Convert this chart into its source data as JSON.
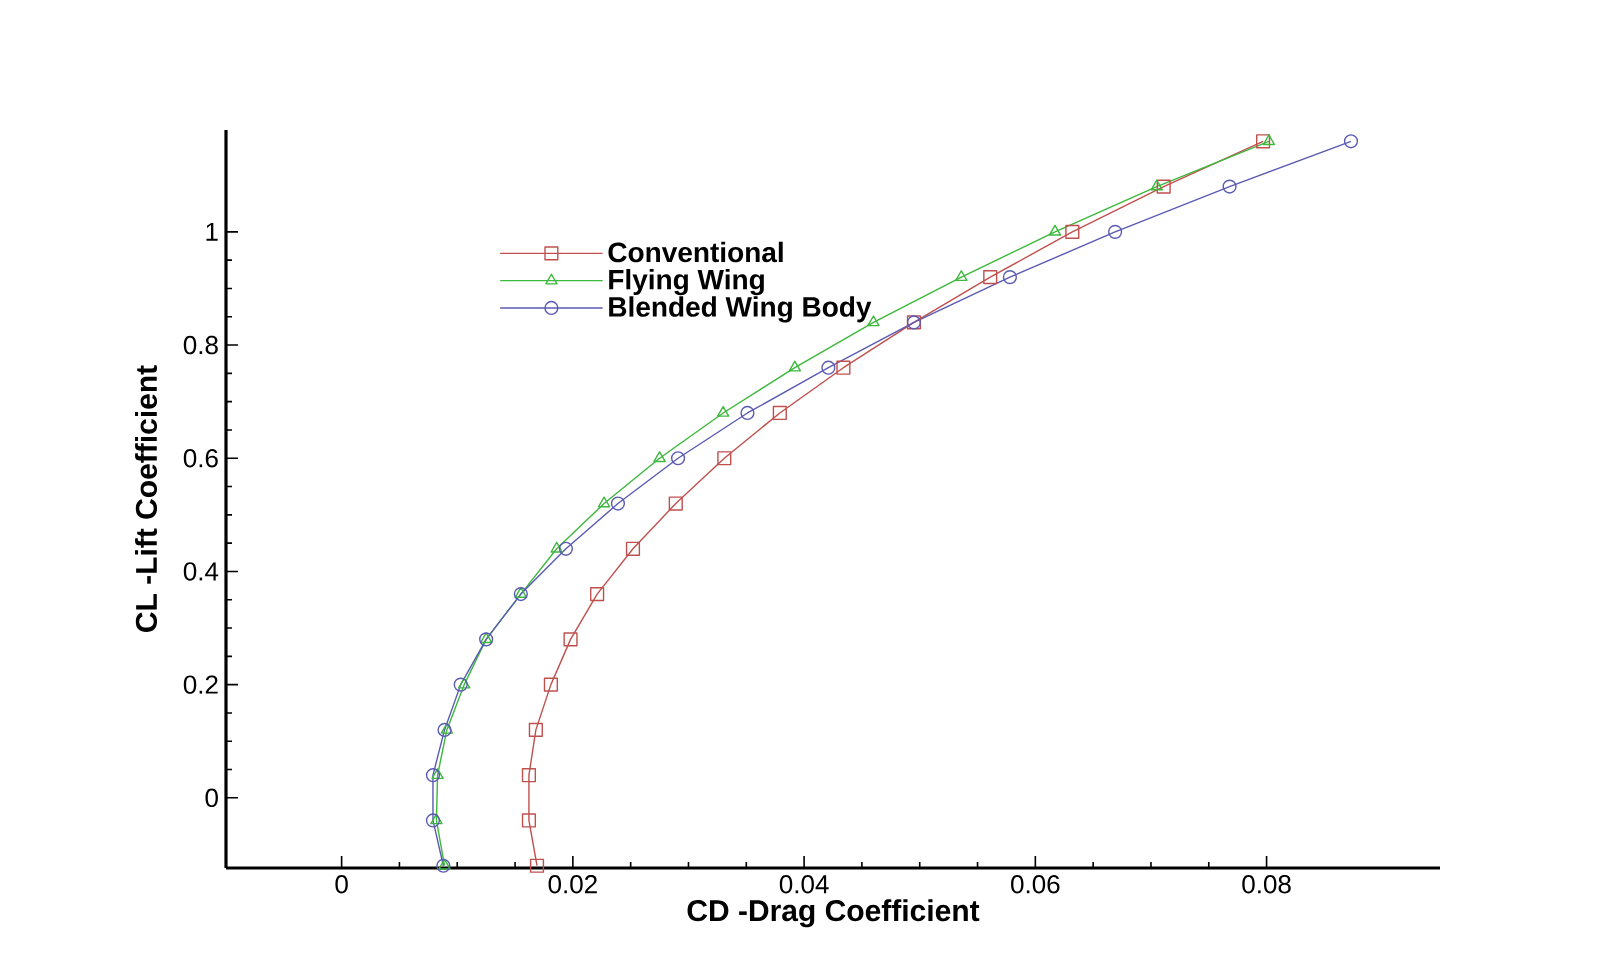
{
  "chart_data": {
    "type": "line",
    "xlabel": "CD -Drag Coefficient",
    "ylabel": "CL -Lift Coefficient",
    "xlim": [
      -0.01,
      0.095
    ],
    "ylim": [
      -0.124,
      1.18
    ],
    "xticks": [
      0,
      0.02,
      0.04,
      0.06,
      0.08
    ],
    "yticks": [
      0,
      0.2,
      0.4,
      0.6,
      0.8,
      1
    ],
    "grid": false,
    "legend": "top left",
    "line_style": "solid",
    "series": [
      {
        "name": "Conventional",
        "color": "#c0504d",
        "marker": "square",
        "x": [
          0.0169,
          0.0162,
          0.0162,
          0.0168,
          0.0181,
          0.0198,
          0.0221,
          0.0252,
          0.0289,
          0.0331,
          0.0379,
          0.0434,
          0.0495,
          0.0561,
          0.0632,
          0.0711,
          0.0797
        ],
        "values": [
          -0.12,
          -0.04,
          0.04,
          0.12,
          0.2,
          0.28,
          0.36,
          0.44,
          0.52,
          0.6,
          0.68,
          0.76,
          0.84,
          0.92,
          1.0,
          1.08,
          1.16
        ]
      },
      {
        "name": "Flying Wing",
        "color": "#3cb83c",
        "marker": "triangle",
        "x": [
          0.0089,
          0.0082,
          0.0083,
          0.0091,
          0.0106,
          0.0125,
          0.0155,
          0.0186,
          0.0227,
          0.0275,
          0.033,
          0.0392,
          0.046,
          0.0536,
          0.0617,
          0.0705,
          0.0802
        ],
        "values": [
          -0.12,
          -0.04,
          0.04,
          0.12,
          0.2,
          0.28,
          0.36,
          0.44,
          0.52,
          0.6,
          0.68,
          0.76,
          0.84,
          0.92,
          1.0,
          1.08,
          1.16
        ]
      },
      {
        "name": "Blended Wing Body",
        "color": "#5a5ab4",
        "marker": "circle",
        "x": [
          0.0088,
          0.0079,
          0.0079,
          0.0089,
          0.0103,
          0.0125,
          0.0155,
          0.0194,
          0.0239,
          0.0291,
          0.0351,
          0.0421,
          0.0495,
          0.0578,
          0.0669,
          0.0768,
          0.0873
        ],
        "values": [
          -0.12,
          -0.04,
          0.04,
          0.12,
          0.2,
          0.28,
          0.36,
          0.44,
          0.52,
          0.6,
          0.68,
          0.76,
          0.84,
          0.92,
          1.0,
          1.08,
          1.16
        ]
      }
    ]
  }
}
